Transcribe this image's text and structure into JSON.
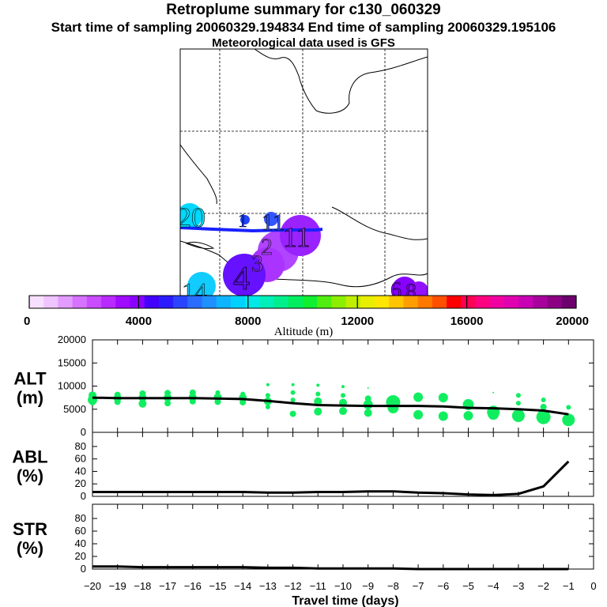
{
  "header": {
    "title": "Retroplume summary for c130_060329",
    "sampling": "Start time of sampling 20060329.194834     End time of sampling 20060329.195106",
    "met": "Meteorological data used is GFS"
  },
  "map": {
    "labels": [
      {
        "text": "20",
        "color": "#00e5ff"
      },
      {
        "text": "1",
        "color": "#0033ff"
      },
      {
        "text": "11",
        "color": "#3355ff"
      },
      {
        "text": "2",
        "color": "#b044ff"
      },
      {
        "text": "11",
        "color": "#9922ff"
      },
      {
        "text": "3",
        "color": "#aa33ff"
      },
      {
        "text": "4",
        "color": "#6611ff"
      },
      {
        "text": "14",
        "color": "#11ccff"
      },
      {
        "text": "6",
        "color": "#8800ff"
      },
      {
        "text": "8",
        "color": "#8800ff"
      }
    ]
  },
  "colorbar": {
    "ticks": [
      "0",
      "4000",
      "8000",
      "12000",
      "16000",
      "20000"
    ],
    "label": "Altitude (m)",
    "colors": [
      "#f7e0ff",
      "#efc4ff",
      "#e29cff",
      "#d672ff",
      "#c94cff",
      "#b92aff",
      "#a00aff",
      "#8a00ff",
      "#4400ff",
      "#2a1cff",
      "#2a44ff",
      "#2a6cff",
      "#1f90ff",
      "#0fb4ff",
      "#00d2ff",
      "#00e8e8",
      "#00eeb8",
      "#00ee8c",
      "#00ee60",
      "#10ee30",
      "#50ee10",
      "#8cee00",
      "#c0ee00",
      "#e8ee00",
      "#ffe600",
      "#ffc400",
      "#ff9e00",
      "#ff7800",
      "#ff5000",
      "#ff0000",
      "#ff0055",
      "#ff0080",
      "#f000a0",
      "#e000b0",
      "#c800b4",
      "#a8009c",
      "#8c0084",
      "#6c006c"
    ]
  },
  "chart_data": [
    {
      "type": "line",
      "panel": "ALT",
      "ylabel_top": "ALT",
      "ylabel_bottom": "(m)",
      "x": [
        -20,
        -19,
        -18,
        -17,
        -16,
        -15,
        -14,
        -13,
        -12,
        -11,
        -10,
        -9,
        -8,
        -7,
        -6,
        -5,
        -4,
        -3,
        -2,
        -1
      ],
      "values": [
        7500,
        7400,
        7400,
        7400,
        7400,
        7300,
        7200,
        6800,
        6300,
        5900,
        5800,
        5700,
        5700,
        5700,
        5600,
        5300,
        5200,
        5000,
        4700,
        3900
      ],
      "ylim": [
        0,
        20000
      ],
      "yticks": [
        "0",
        "5000",
        "10000",
        "15000",
        "20000"
      ],
      "scatter": [
        {
          "x": -20,
          "alt": [
            8000,
            7000,
            6500
          ],
          "r": [
            5,
            6,
            4
          ]
        },
        {
          "x": -19,
          "alt": [
            8100,
            7400,
            6600
          ],
          "r": [
            4,
            5,
            4
          ]
        },
        {
          "x": -18,
          "alt": [
            8400,
            7500,
            6200
          ],
          "r": [
            4,
            5,
            5
          ]
        },
        {
          "x": -17,
          "alt": [
            8500,
            7500,
            6300
          ],
          "r": [
            4,
            5,
            4
          ]
        },
        {
          "x": -16,
          "alt": [
            8600,
            7600,
            6700
          ],
          "r": [
            4,
            5,
            4
          ]
        },
        {
          "x": -15,
          "alt": [
            8600,
            7600,
            6600
          ],
          "r": [
            3,
            5,
            4
          ]
        },
        {
          "x": -14,
          "alt": [
            8300,
            7500,
            6500
          ],
          "r": [
            3,
            5,
            4
          ]
        },
        {
          "x": -13,
          "alt": [
            10300,
            8000,
            6700,
            5500
          ],
          "r": [
            2,
            3,
            5,
            3
          ]
        },
        {
          "x": -12,
          "alt": [
            10300,
            8600,
            7000,
            4000
          ],
          "r": [
            2,
            3,
            3,
            4
          ]
        },
        {
          "x": -11,
          "alt": [
            10200,
            8300,
            6700,
            4500
          ],
          "r": [
            2,
            3,
            5,
            5
          ]
        },
        {
          "x": -10,
          "alt": [
            9900,
            8000,
            6400,
            4600
          ],
          "r": [
            2,
            3,
            5,
            5
          ]
        },
        {
          "x": -9,
          "alt": [
            9600,
            7300,
            6000,
            4200
          ],
          "r": [
            1,
            4,
            6,
            5
          ]
        },
        {
          "x": -8,
          "alt": [
            6500,
            5300
          ],
          "r": [
            9,
            7
          ]
        },
        {
          "x": -7,
          "alt": [
            7600,
            3800
          ],
          "r": [
            6,
            6
          ]
        },
        {
          "x": -6,
          "alt": [
            7500,
            3500
          ],
          "r": [
            6,
            6
          ]
        },
        {
          "x": -5,
          "alt": [
            6000,
            3600
          ],
          "r": [
            7,
            6
          ]
        },
        {
          "x": -4,
          "alt": [
            8600,
            4400,
            3900
          ],
          "r": [
            1,
            8,
            7
          ]
        },
        {
          "x": -3,
          "alt": [
            8000,
            6300,
            3600
          ],
          "r": [
            3,
            3,
            8
          ]
        },
        {
          "x": -2,
          "alt": [
            7000,
            5500,
            3300
          ],
          "r": [
            3,
            4,
            9
          ]
        },
        {
          "x": -1,
          "alt": [
            5400,
            3300,
            2700
          ],
          "r": [
            3,
            4,
            8
          ]
        }
      ]
    },
    {
      "type": "line",
      "panel": "ABL",
      "ylabel_top": "ABL",
      "ylabel_bottom": "(%)",
      "x": [
        -20,
        -19,
        -18,
        -17,
        -16,
        -15,
        -14,
        -13,
        -12,
        -11,
        -10,
        -9,
        -8,
        -7,
        -6,
        -5,
        -4,
        -3,
        -2,
        -1
      ],
      "values": [
        7,
        7,
        7,
        7,
        7,
        7,
        7,
        6,
        6,
        7,
        7,
        8,
        8,
        6,
        5,
        3,
        2,
        4,
        16,
        56
      ],
      "ylim": [
        0,
        90
      ],
      "yticks": [
        "0",
        "20",
        "40",
        "60",
        "80"
      ]
    },
    {
      "type": "line",
      "panel": "STR",
      "ylabel_top": "STR",
      "ylabel_bottom": "(%)",
      "x": [
        -20,
        -19,
        -18,
        -17,
        -16,
        -15,
        -14,
        -13,
        -12,
        -11,
        -10,
        -9,
        -8,
        -7,
        -6,
        -5,
        -4,
        -3,
        -2,
        -1
      ],
      "values": [
        4,
        4,
        3,
        3,
        3,
        3,
        3,
        2,
        2,
        1,
        1,
        1,
        1,
        0,
        0,
        0,
        0,
        0,
        0,
        0
      ],
      "ylim": [
        0,
        90
      ],
      "yticks": [
        "0",
        "20",
        "40",
        "60",
        "80"
      ],
      "xticks": [
        "−20",
        "−19",
        "−18",
        "−17",
        "−16",
        "−15",
        "−14",
        "−13",
        "−12",
        "−11",
        "−10",
        "−9",
        "−8",
        "−7",
        "−6",
        "−5",
        "−4",
        "−3",
        "−2",
        "−1",
        "0"
      ],
      "xlabel": "Travel time (days)"
    }
  ]
}
